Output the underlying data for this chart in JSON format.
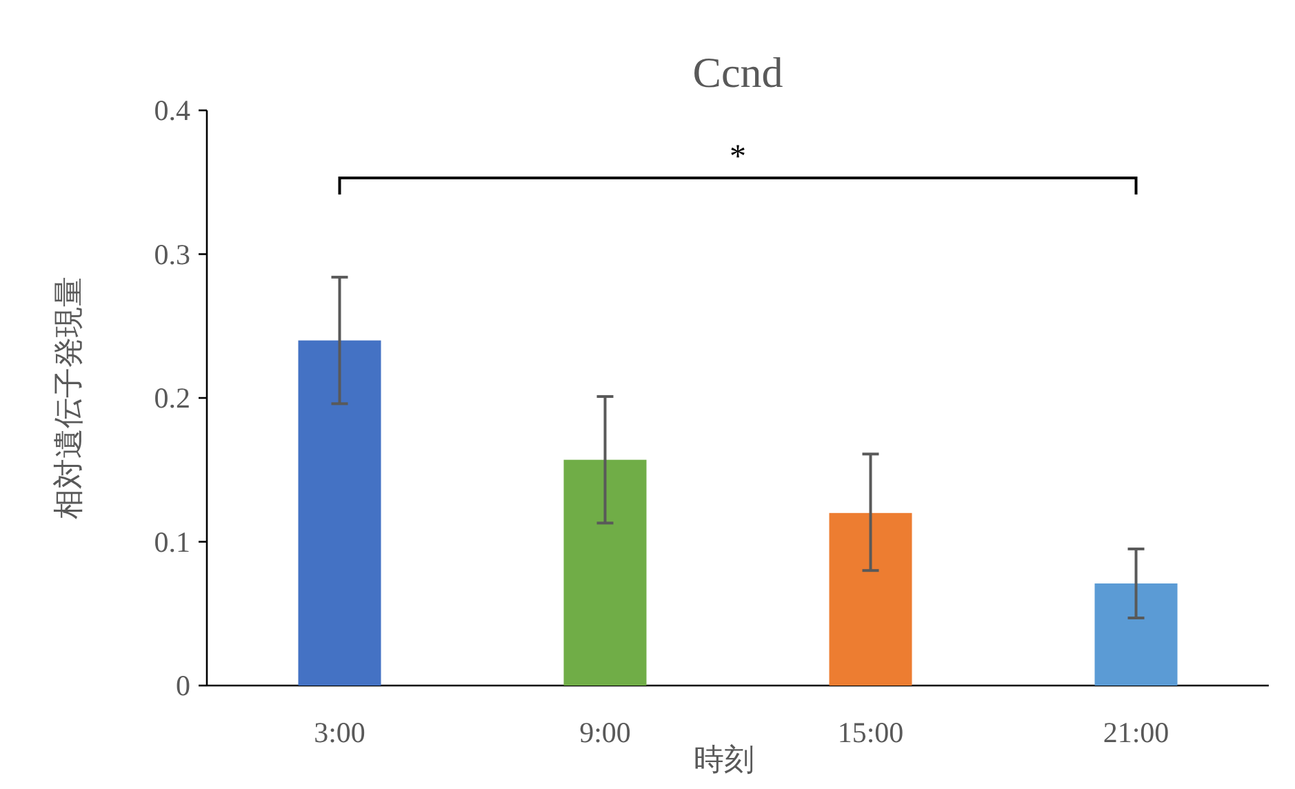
{
  "chart_data": {
    "type": "bar",
    "title": "Ccnd",
    "xlabel": "時刻",
    "ylabel": "相対遺伝子発現量",
    "categories": [
      "3:00",
      "9:00",
      "15:00",
      "21:00"
    ],
    "values": [
      0.24,
      0.157,
      0.12,
      0.071
    ],
    "colors": [
      "#4472c4",
      "#70ad47",
      "#ed7d31",
      "#5b9bd5"
    ],
    "errors": [
      [
        0.196,
        0.284
      ],
      [
        0.113,
        0.201
      ],
      [
        0.08,
        0.161
      ],
      [
        0.047,
        0.095
      ]
    ],
    "ylim": [
      0,
      0.4
    ],
    "yticks": [
      {
        "value": 0,
        "label": "0"
      },
      0.1,
      0.2,
      0.3,
      0.4
    ],
    "annotations": [
      "*"
    ],
    "grid": false
  }
}
